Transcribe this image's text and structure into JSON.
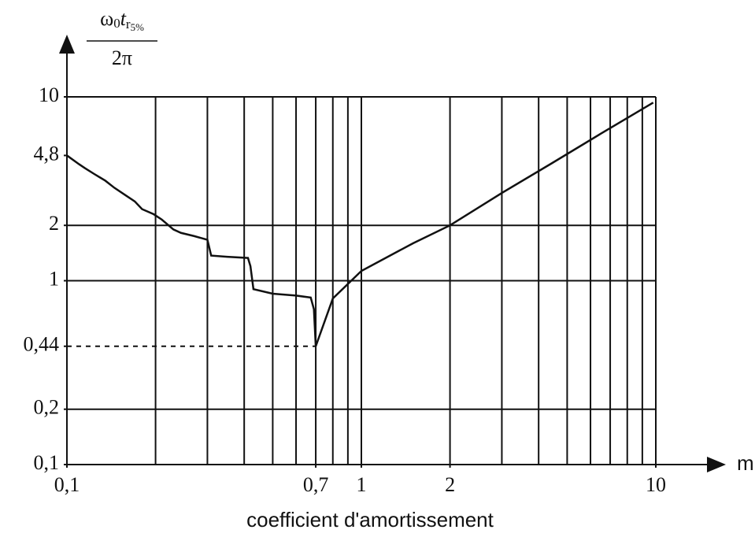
{
  "chart_data": {
    "type": "line",
    "ylabel": {
      "numerator": [
        "ω",
        "0",
        "t",
        "r",
        "5%"
      ],
      "denominator": "2π"
    },
    "xaxis_symbol": "m",
    "xlabel": "coefficient d'amortissement",
    "xscale": "log",
    "yscale": "log",
    "xlim": [
      0.1,
      10
    ],
    "ylim": [
      0.1,
      10
    ],
    "xticks": [
      {
        "value": 0.1,
        "label": "0,1"
      },
      {
        "value": 0.7,
        "label": "0,7"
      },
      1,
      2,
      10
    ],
    "yticks": [
      10,
      {
        "value": 4.8,
        "label": "4,8"
      },
      2,
      1,
      {
        "value": 0.44,
        "label": "0,44"
      },
      {
        "value": 0.2,
        "label": "0,2"
      },
      {
        "value": 0.1,
        "label": "0,1"
      }
    ],
    "xgrid": [
      0.2,
      0.3,
      0.4,
      0.5,
      0.6,
      0.7,
      0.8,
      0.9,
      1,
      2,
      3,
      4,
      5,
      6,
      7,
      8,
      9,
      10
    ],
    "ygrid": [
      10,
      2,
      1,
      0.2
    ],
    "reference_line": {
      "x": 0.7,
      "y": 0.44
    },
    "series": [
      {
        "color": "#111",
        "x": [
          0.1,
          0.11,
          0.115,
          0.124,
          0.135,
          0.145,
          0.159,
          0.17,
          0.18,
          0.197,
          0.21,
          0.23,
          0.244,
          0.27,
          0.3,
          0.309,
          0.35,
          0.412,
          0.42,
          0.43,
          0.5,
          0.6,
          0.673,
          0.69,
          0.7,
          0.8,
          1,
          1.5,
          2,
          3,
          4.41,
          6.5,
          9.8
        ],
        "values": [
          4.8,
          4.3,
          4.1,
          3.8,
          3.5,
          3.2,
          2.9,
          2.7,
          2.45,
          2.3,
          2.15,
          1.9,
          1.82,
          1.75,
          1.67,
          1.37,
          1.35,
          1.33,
          1.2,
          0.9,
          0.85,
          0.83,
          0.81,
          0.7,
          0.44,
          0.8,
          1.13,
          1.6,
          2,
          3,
          4.33,
          6.3,
          9.3
        ]
      }
    ]
  }
}
